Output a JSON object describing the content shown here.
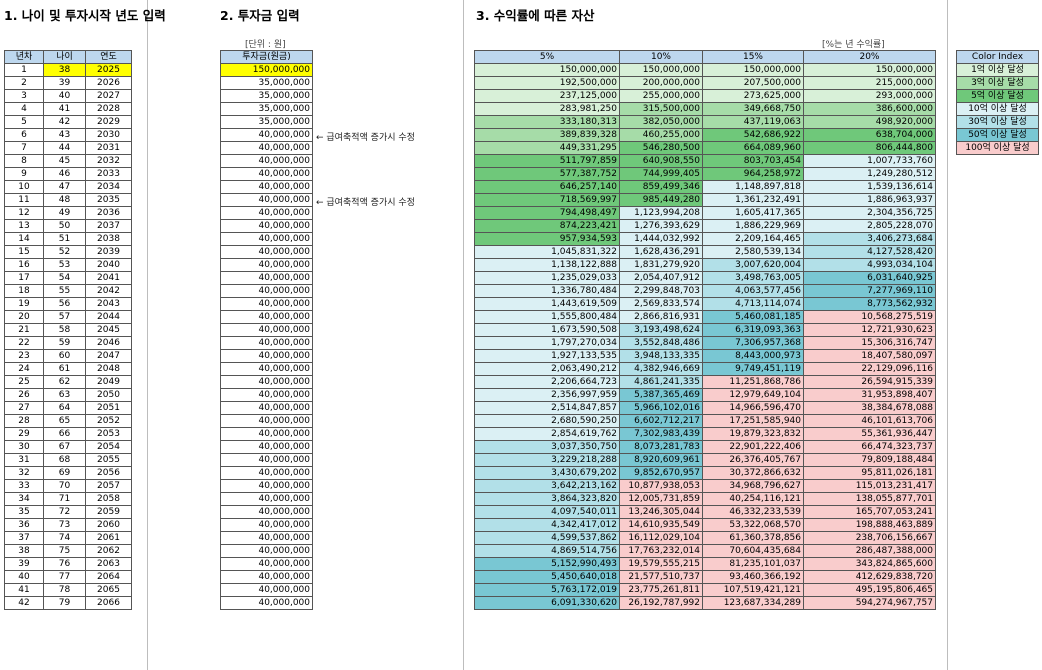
{
  "section1": {
    "title": "1. 나이 및 투자시작 년도 입력"
  },
  "section2": {
    "title": "2. 투자금 입력",
    "unit": "[단위 : 원]",
    "header": "투자금(원금)"
  },
  "section3": {
    "title": "3. 수익률에 따른 자산",
    "unit": "[%는 년 수익률]"
  },
  "age_table": {
    "headers": [
      "년차",
      "나이",
      "연도"
    ]
  },
  "return_headers": [
    "5%",
    "10%",
    "15%",
    "20%"
  ],
  "rows": [
    {
      "n": "1",
      "age": "38",
      "year": "2025",
      "inv": "150,000,000",
      "v": [
        "150,000,000",
        "150,000,000",
        "150,000,000",
        "150,000,000"
      ]
    },
    {
      "n": "2",
      "age": "39",
      "year": "2026",
      "inv": "35,000,000",
      "v": [
        "192,500,000",
        "200,000,000",
        "207,500,000",
        "215,000,000"
      ]
    },
    {
      "n": "3",
      "age": "40",
      "year": "2027",
      "inv": "35,000,000",
      "v": [
        "237,125,000",
        "255,000,000",
        "273,625,000",
        "293,000,000"
      ]
    },
    {
      "n": "4",
      "age": "41",
      "year": "2028",
      "inv": "35,000,000",
      "v": [
        "283,981,250",
        "315,500,000",
        "349,668,750",
        "386,600,000"
      ]
    },
    {
      "n": "5",
      "age": "42",
      "year": "2029",
      "inv": "35,000,000",
      "v": [
        "333,180,313",
        "382,050,000",
        "437,119,063",
        "498,920,000"
      ]
    },
    {
      "n": "6",
      "age": "43",
      "year": "2030",
      "inv": "40,000,000",
      "v": [
        "389,839,328",
        "460,255,000",
        "542,686,922",
        "638,704,000"
      ]
    },
    {
      "n": "7",
      "age": "44",
      "year": "2031",
      "inv": "40,000,000",
      "v": [
        "449,331,295",
        "546,280,500",
        "664,089,960",
        "806,444,800"
      ]
    },
    {
      "n": "8",
      "age": "45",
      "year": "2032",
      "inv": "40,000,000",
      "v": [
        "511,797,859",
        "640,908,550",
        "803,703,454",
        "1,007,733,760"
      ]
    },
    {
      "n": "9",
      "age": "46",
      "year": "2033",
      "inv": "40,000,000",
      "v": [
        "577,387,752",
        "744,999,405",
        "964,258,972",
        "1,249,280,512"
      ]
    },
    {
      "n": "10",
      "age": "47",
      "year": "2034",
      "inv": "40,000,000",
      "v": [
        "646,257,140",
        "859,499,346",
        "1,148,897,818",
        "1,539,136,614"
      ]
    },
    {
      "n": "11",
      "age": "48",
      "year": "2035",
      "inv": "40,000,000",
      "v": [
        "718,569,997",
        "985,449,280",
        "1,361,232,491",
        "1,886,963,937"
      ]
    },
    {
      "n": "12",
      "age": "49",
      "year": "2036",
      "inv": "40,000,000",
      "v": [
        "794,498,497",
        "1,123,994,208",
        "1,605,417,365",
        "2,304,356,725"
      ]
    },
    {
      "n": "13",
      "age": "50",
      "year": "2037",
      "inv": "40,000,000",
      "v": [
        "874,223,421",
        "1,276,393,629",
        "1,886,229,969",
        "2,805,228,070"
      ]
    },
    {
      "n": "14",
      "age": "51",
      "year": "2038",
      "inv": "40,000,000",
      "v": [
        "957,934,593",
        "1,444,032,992",
        "2,209,164,465",
        "3,406,273,684"
      ]
    },
    {
      "n": "15",
      "age": "52",
      "year": "2039",
      "inv": "40,000,000",
      "v": [
        "1,045,831,322",
        "1,628,436,291",
        "2,580,539,134",
        "4,127,528,420"
      ]
    },
    {
      "n": "16",
      "age": "53",
      "year": "2040",
      "inv": "40,000,000",
      "v": [
        "1,138,122,888",
        "1,831,279,920",
        "3,007,620,004",
        "4,993,034,104"
      ]
    },
    {
      "n": "17",
      "age": "54",
      "year": "2041",
      "inv": "40,000,000",
      "v": [
        "1,235,029,033",
        "2,054,407,912",
        "3,498,763,005",
        "6,031,640,925"
      ]
    },
    {
      "n": "18",
      "age": "55",
      "year": "2042",
      "inv": "40,000,000",
      "v": [
        "1,336,780,484",
        "2,299,848,703",
        "4,063,577,456",
        "7,277,969,110"
      ]
    },
    {
      "n": "19",
      "age": "56",
      "year": "2043",
      "inv": "40,000,000",
      "v": [
        "1,443,619,509",
        "2,569,833,574",
        "4,713,114,074",
        "8,773,562,932"
      ]
    },
    {
      "n": "20",
      "age": "57",
      "year": "2044",
      "inv": "40,000,000",
      "v": [
        "1,555,800,484",
        "2,866,816,931",
        "5,460,081,185",
        "10,568,275,519"
      ]
    },
    {
      "n": "21",
      "age": "58",
      "year": "2045",
      "inv": "40,000,000",
      "v": [
        "1,673,590,508",
        "3,193,498,624",
        "6,319,093,363",
        "12,721,930,623"
      ]
    },
    {
      "n": "22",
      "age": "59",
      "year": "2046",
      "inv": "40,000,000",
      "v": [
        "1,797,270,034",
        "3,552,848,486",
        "7,306,957,368",
        "15,306,316,747"
      ]
    },
    {
      "n": "23",
      "age": "60",
      "year": "2047",
      "inv": "40,000,000",
      "v": [
        "1,927,133,535",
        "3,948,133,335",
        "8,443,000,973",
        "18,407,580,097"
      ]
    },
    {
      "n": "24",
      "age": "61",
      "year": "2048",
      "inv": "40,000,000",
      "v": [
        "2,063,490,212",
        "4,382,946,669",
        "9,749,451,119",
        "22,129,096,116"
      ]
    },
    {
      "n": "25",
      "age": "62",
      "year": "2049",
      "inv": "40,000,000",
      "v": [
        "2,206,664,723",
        "4,861,241,335",
        "11,251,868,786",
        "26,594,915,339"
      ]
    },
    {
      "n": "26",
      "age": "63",
      "year": "2050",
      "inv": "40,000,000",
      "v": [
        "2,356,997,959",
        "5,387,365,469",
        "12,979,649,104",
        "31,953,898,407"
      ]
    },
    {
      "n": "27",
      "age": "64",
      "year": "2051",
      "inv": "40,000,000",
      "v": [
        "2,514,847,857",
        "5,966,102,016",
        "14,966,596,470",
        "38,384,678,088"
      ]
    },
    {
      "n": "28",
      "age": "65",
      "year": "2052",
      "inv": "40,000,000",
      "v": [
        "2,680,590,250",
        "6,602,712,217",
        "17,251,585,940",
        "46,101,613,706"
      ]
    },
    {
      "n": "29",
      "age": "66",
      "year": "2053",
      "inv": "40,000,000",
      "v": [
        "2,854,619,762",
        "7,302,983,439",
        "19,879,323,832",
        "55,361,936,447"
      ]
    },
    {
      "n": "30",
      "age": "67",
      "year": "2054",
      "inv": "40,000,000",
      "v": [
        "3,037,350,750",
        "8,073,281,783",
        "22,901,222,406",
        "66,474,323,737"
      ]
    },
    {
      "n": "31",
      "age": "68",
      "year": "2055",
      "inv": "40,000,000",
      "v": [
        "3,229,218,288",
        "8,920,609,961",
        "26,376,405,767",
        "79,809,188,484"
      ]
    },
    {
      "n": "32",
      "age": "69",
      "year": "2056",
      "inv": "40,000,000",
      "v": [
        "3,430,679,202",
        "9,852,670,957",
        "30,372,866,632",
        "95,811,026,181"
      ]
    },
    {
      "n": "33",
      "age": "70",
      "year": "2057",
      "inv": "40,000,000",
      "v": [
        "3,642,213,162",
        "10,877,938,053",
        "34,968,796,627",
        "115,013,231,417"
      ]
    },
    {
      "n": "34",
      "age": "71",
      "year": "2058",
      "inv": "40,000,000",
      "v": [
        "3,864,323,820",
        "12,005,731,859",
        "40,254,116,121",
        "138,055,877,701"
      ]
    },
    {
      "n": "35",
      "age": "72",
      "year": "2059",
      "inv": "40,000,000",
      "v": [
        "4,097,540,011",
        "13,246,305,044",
        "46,332,233,539",
        "165,707,053,241"
      ]
    },
    {
      "n": "36",
      "age": "73",
      "year": "2060",
      "inv": "40,000,000",
      "v": [
        "4,342,417,012",
        "14,610,935,549",
        "53,322,068,570",
        "198,888,463,889"
      ]
    },
    {
      "n": "37",
      "age": "74",
      "year": "2061",
      "inv": "40,000,000",
      "v": [
        "4,599,537,862",
        "16,112,029,104",
        "61,360,378,856",
        "238,706,156,667"
      ]
    },
    {
      "n": "38",
      "age": "75",
      "year": "2062",
      "inv": "40,000,000",
      "v": [
        "4,869,514,756",
        "17,763,232,014",
        "70,604,435,684",
        "286,487,388,000"
      ]
    },
    {
      "n": "39",
      "age": "76",
      "year": "2063",
      "inv": "40,000,000",
      "v": [
        "5,152,990,493",
        "19,579,555,215",
        "81,235,101,037",
        "343,824,865,600"
      ]
    },
    {
      "n": "40",
      "age": "77",
      "year": "2064",
      "inv": "40,000,000",
      "v": [
        "5,450,640,018",
        "21,577,510,737",
        "93,460,366,192",
        "412,629,838,720"
      ]
    },
    {
      "n": "41",
      "age": "78",
      "year": "2065",
      "inv": "40,000,000",
      "v": [
        "5,763,172,019",
        "23,775,261,811",
        "107,519,421,121",
        "495,195,806,465"
      ]
    },
    {
      "n": "42",
      "age": "79",
      "year": "2066",
      "inv": "40,000,000",
      "v": [
        "6,091,330,620",
        "26,192,787,992",
        "123,687,334,289",
        "594,274,967,757"
      ]
    }
  ],
  "notes": [
    {
      "row_index": 5,
      "text": "← 급여축적액 증가시 수정"
    },
    {
      "row_index": 10,
      "text": "← 급여축적액 증가시 수정"
    }
  ],
  "color_index": {
    "title": "Color Index",
    "items": [
      {
        "label": "1억 이상 달성",
        "color": "#d8f0d8"
      },
      {
        "label": "3억 이상 달성",
        "color": "#a6dca8"
      },
      {
        "label": "5억 이상 달성",
        "color": "#6fc87a"
      },
      {
        "label": "10억 이상 달성",
        "color": "#dbf0f4"
      },
      {
        "label": "30억 이상 달성",
        "color": "#b2e0e8"
      },
      {
        "label": "50억 이상 달성",
        "color": "#79c7d3"
      },
      {
        "label": "100억 이상 달성",
        "color": "#f9cccc"
      }
    ]
  }
}
